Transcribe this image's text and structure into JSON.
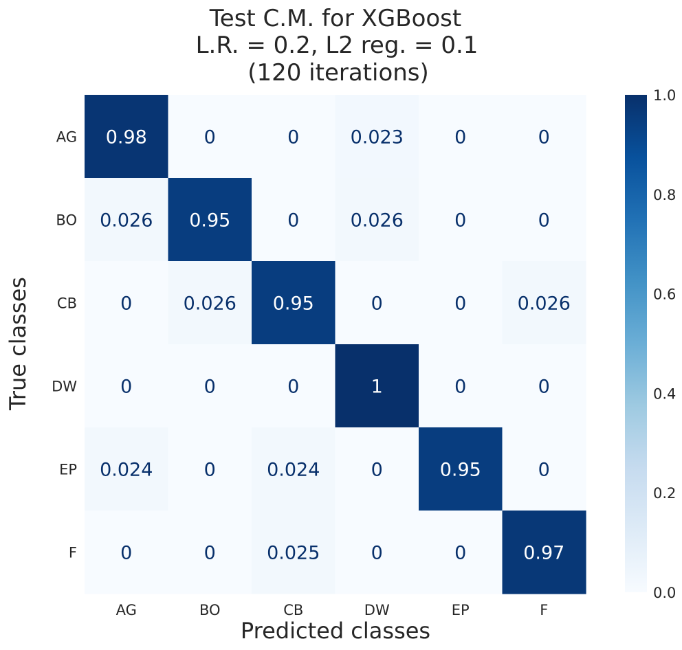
{
  "chart_data": {
    "type": "heatmap",
    "title_lines": [
      "Test C.M. for XGBoost",
      "L.R. = 0.2, L2 reg. = 0.1",
      "(120 iterations)"
    ],
    "xlabel": "Predicted classes",
    "ylabel": "True classes",
    "x_categories": [
      "AG",
      "BO",
      "CB",
      "DW",
      "EP",
      "F"
    ],
    "y_categories": [
      "AG",
      "BO",
      "CB",
      "DW",
      "EP",
      "F"
    ],
    "values": [
      [
        0.98,
        0,
        0,
        0.023,
        0,
        0
      ],
      [
        0.026,
        0.95,
        0,
        0.026,
        0,
        0
      ],
      [
        0,
        0.026,
        0.95,
        0,
        0,
        0.026
      ],
      [
        0,
        0,
        0,
        1,
        0,
        0
      ],
      [
        0.024,
        0,
        0.024,
        0,
        0.95,
        0
      ],
      [
        0,
        0,
        0.025,
        0,
        0,
        0.97
      ]
    ],
    "colorbar": {
      "range": [
        0.0,
        1.0
      ],
      "ticks": [
        "0.0",
        "0.2",
        "0.4",
        "0.6",
        "0.8",
        "1.0"
      ],
      "colormap": "Blues"
    },
    "grid": false
  }
}
